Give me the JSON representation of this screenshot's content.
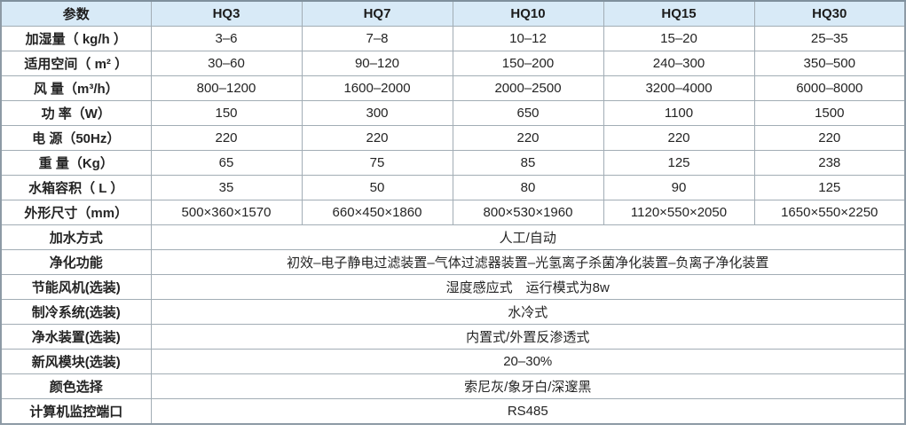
{
  "colors": {
    "header_bg": "#d8eaf7",
    "border_inner": "#a2adb5",
    "border_outer": "#8d9aa5",
    "text": "#242424",
    "cell_bg": "#ffffff"
  },
  "table": {
    "header": [
      "参数",
      "HQ3",
      "HQ7",
      "HQ10",
      "HQ15",
      "HQ30"
    ],
    "spec_rows": [
      {
        "label": "加湿量（ kg/h ）",
        "values": [
          "3–6",
          "7–8",
          "10–12",
          "15–20",
          "25–35"
        ]
      },
      {
        "label": "适用空间（ m² ）",
        "values": [
          "30–60",
          "90–120",
          "150–200",
          "240–300",
          "350–500"
        ]
      },
      {
        "label": "风 量（m³/h）",
        "values": [
          "800–1200",
          "1600–2000",
          "2000–2500",
          "3200–4000",
          "6000–8000"
        ]
      },
      {
        "label": "功 率（W）",
        "values": [
          "150",
          "300",
          "650",
          "1100",
          "1500"
        ]
      },
      {
        "label": "电 源（50Hz）",
        "values": [
          "220",
          "220",
          "220",
          "220",
          "220"
        ]
      },
      {
        "label": "重 量（Kg）",
        "values": [
          "65",
          "75",
          "85",
          "125",
          "238"
        ]
      },
      {
        "label": "水箱容积（ L ）",
        "values": [
          "35",
          "50",
          "80",
          "90",
          "125"
        ]
      },
      {
        "label": "外形尺寸（mm）",
        "values": [
          "500×360×1570",
          "660×450×1860",
          "800×530×1960",
          "1120×550×2050",
          "1650×550×2250"
        ]
      }
    ],
    "span_rows": [
      {
        "label": "加水方式",
        "value": "人工/自动"
      },
      {
        "label": "净化功能",
        "value": "初效–电子静电过滤装置–气体过滤器装置–光氢离子杀菌净化装置–负离子净化装置"
      },
      {
        "label": "节能风机(选装)",
        "value": "湿度感应式　运行模式为8w"
      },
      {
        "label": "制冷系统(选装)",
        "value": "水冷式"
      },
      {
        "label": "净水装置(选装)",
        "value": "内置式/外置反渗透式"
      },
      {
        "label": "新风模块(选装)",
        "value": "20–30%"
      },
      {
        "label": "颜色选择",
        "value": "索尼灰/象牙白/深邃黑"
      },
      {
        "label": "计算机监控端口",
        "value": "RS485"
      }
    ]
  }
}
